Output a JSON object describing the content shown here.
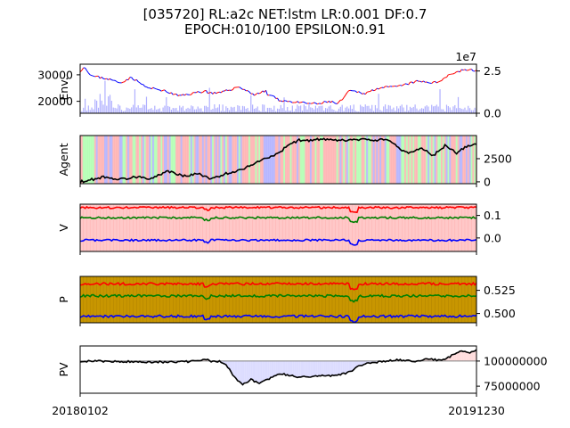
{
  "title": {
    "line1": "[035720] RL:a2c NET:lstm LR:0.001 DF:0.7",
    "line2": "EPOCH:010/100 EPSILON:0.91"
  },
  "colors": {
    "env_up": "#ff0000",
    "env_down": "#0000ff",
    "env_volume": "#b0b0ff",
    "agent_buy": "#ffb0b0",
    "agent_sell": "#b0b0ff",
    "agent_hold": "#b0ffb0",
    "line_black": "#000000",
    "v_red": "#ff0000",
    "v_green": "#008000",
    "v_blue": "#0000ff",
    "v_bg": "#ffc8c8",
    "p_bg": "#c89600",
    "pv_gain": "#ffdcdc",
    "pv_loss": "#dcdcff",
    "baseline": "#808080"
  },
  "x_axis": {
    "start_label": "20180102",
    "end_label": "20191230"
  },
  "chart_data": [
    {
      "name": "Env",
      "type": "line",
      "ylabel": "Env.",
      "ylim": [
        15500,
        34000
      ],
      "yticks": [
        "20000",
        "30000"
      ],
      "ytick_values": [
        20000,
        30000
      ],
      "y2ticks": [
        "0.0",
        "2.5"
      ],
      "y2tick_values": [
        0,
        2.5
      ],
      "y2_offset_label": "1e7",
      "price_keypoints": [
        [
          0,
          31500
        ],
        [
          0.01,
          33000
        ],
        [
          0.03,
          29500
        ],
        [
          0.07,
          28500
        ],
        [
          0.1,
          27000
        ],
        [
          0.13,
          29000
        ],
        [
          0.17,
          25000
        ],
        [
          0.2,
          24500
        ],
        [
          0.25,
          22000
        ],
        [
          0.3,
          23500
        ],
        [
          0.32,
          24000
        ],
        [
          0.3,
          23500
        ],
        [
          0.35,
          23000
        ],
        [
          0.4,
          25500
        ],
        [
          0.44,
          22500
        ],
        [
          0.47,
          24000
        ],
        [
          0.4,
          19000
        ],
        [
          0.39,
          17000
        ],
        [
          0.42,
          21000
        ],
        [
          0.48,
          22500
        ],
        [
          0.5,
          20500
        ],
        [
          0.55,
          19500
        ],
        [
          0.6,
          19000
        ],
        [
          0.63,
          20000
        ],
        [
          0.65,
          19000
        ],
        [
          0.66,
          20500
        ],
        [
          0.68,
          24000
        ],
        [
          0.72,
          23000
        ],
        [
          0.75,
          25000
        ],
        [
          0.8,
          25500
        ],
        [
          0.85,
          27500
        ],
        [
          0.9,
          27000
        ],
        [
          0.93,
          30000
        ],
        [
          0.97,
          32000
        ],
        [
          1,
          31500
        ]
      ]
    },
    {
      "name": "Agent",
      "type": "line",
      "ylabel": "Agent",
      "ylim": [
        -200,
        5000
      ],
      "yticks": [
        "0",
        "2500"
      ],
      "ytick_values": [
        0,
        2500
      ],
      "keypoints": [
        [
          0,
          0
        ],
        [
          0.02,
          150
        ],
        [
          0.06,
          550
        ],
        [
          0.1,
          250
        ],
        [
          0.15,
          600
        ],
        [
          0.18,
          300
        ],
        [
          0.22,
          1200
        ],
        [
          0.26,
          600
        ],
        [
          0.3,
          900
        ],
        [
          0.33,
          250
        ],
        [
          0.36,
          800
        ],
        [
          0.4,
          1200
        ],
        [
          0.43,
          1800
        ],
        [
          0.47,
          2600
        ],
        [
          0.5,
          3000
        ],
        [
          0.52,
          3800
        ],
        [
          0.55,
          4500
        ],
        [
          0.58,
          4450
        ],
        [
          0.6,
          4600
        ],
        [
          0.65,
          4450
        ],
        [
          0.7,
          4550
        ],
        [
          0.75,
          4500
        ],
        [
          0.78,
          4600
        ],
        [
          0.8,
          3700
        ],
        [
          0.83,
          3100
        ],
        [
          0.86,
          3700
        ],
        [
          0.89,
          2800
        ],
        [
          0.92,
          3900
        ],
        [
          0.95,
          3100
        ],
        [
          0.97,
          3700
        ],
        [
          1,
          4100
        ]
      ]
    },
    {
      "name": "V",
      "type": "line",
      "ylabel": "V",
      "ylim": [
        -0.06,
        0.15
      ],
      "yticks": [
        "0.0",
        "0.1"
      ],
      "ytick_values": [
        0.0,
        0.1
      ],
      "series": [
        {
          "color": "red",
          "level": 0.135
        },
        {
          "color": "green",
          "level": 0.09
        },
        {
          "color": "blue",
          "level": -0.01
        }
      ]
    },
    {
      "name": "P",
      "type": "line",
      "ylabel": "P",
      "ylim": [
        0.49,
        0.54
      ],
      "yticks": [
        "0.500",
        "0.525"
      ],
      "ytick_values": [
        0.5,
        0.525
      ],
      "series": [
        {
          "color": "red",
          "level": 0.532
        },
        {
          "color": "green",
          "level": 0.519
        },
        {
          "color": "blue",
          "level": 0.497
        }
      ]
    },
    {
      "name": "PV",
      "type": "line",
      "ylabel": "PV",
      "ylim": [
        68000000,
        115000000
      ],
      "yticks": [
        "75000000",
        "100000000"
      ],
      "ytick_values": [
        75000000,
        100000000
      ],
      "baseline": 100000000,
      "keypoints": [
        [
          0,
          100000000
        ],
        [
          0.1,
          99500000
        ],
        [
          0.2,
          99000000
        ],
        [
          0.28,
          99500000
        ],
        [
          0.3,
          100500000
        ],
        [
          0.32,
          101500000
        ],
        [
          0.33,
          99500000
        ],
        [
          0.35,
          100000000
        ],
        [
          0.37,
          95000000
        ],
        [
          0.39,
          84000000
        ],
        [
          0.41,
          76000000
        ],
        [
          0.43,
          82000000
        ],
        [
          0.45,
          78000000
        ],
        [
          0.48,
          83000000
        ],
        [
          0.5,
          88000000
        ],
        [
          0.55,
          84000000
        ],
        [
          0.6,
          85000000
        ],
        [
          0.65,
          86000000
        ],
        [
          0.68,
          89000000
        ],
        [
          0.7,
          94000000
        ],
        [
          0.72,
          98000000
        ],
        [
          0.75,
          99000000
        ],
        [
          0.8,
          101000000
        ],
        [
          0.85,
          100000000
        ],
        [
          0.88,
          102000000
        ],
        [
          0.9,
          101000000
        ],
        [
          0.92,
          102000000
        ],
        [
          0.94,
          106000000
        ],
        [
          0.96,
          110000000
        ],
        [
          0.98,
          108000000
        ],
        [
          1,
          111000000
        ]
      ]
    }
  ]
}
